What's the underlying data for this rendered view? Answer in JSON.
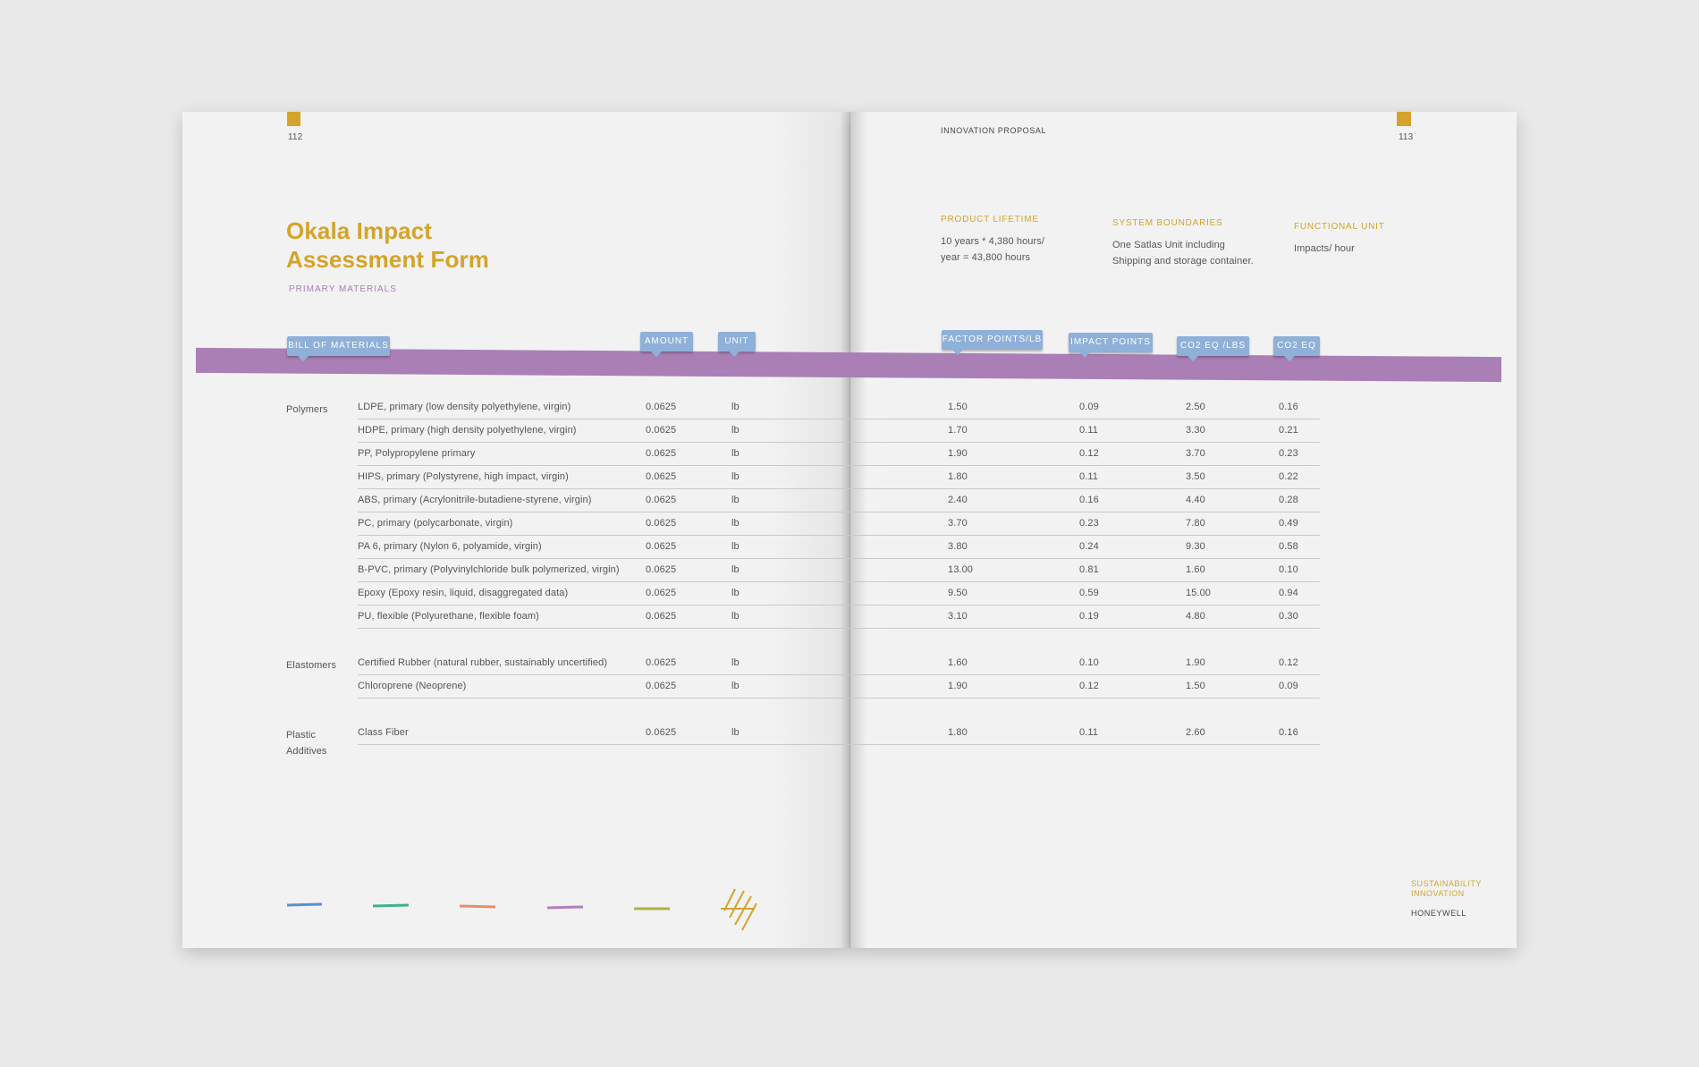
{
  "left_page": {
    "page_number": "112",
    "title": [
      "Okala Impact",
      "Assessment Form"
    ],
    "subtitle": "PRIMARY MATERIALS"
  },
  "right_page": {
    "running_head": "INNOVATION PROPOSAL",
    "page_number": "113",
    "info": [
      {
        "label": "PRODUCT LIFETIME",
        "lines": [
          "10 years * 4,380 hours/",
          "year = 43,800 hours"
        ]
      },
      {
        "label": "SYSTEM BOUNDARIES",
        "lines": [
          "One Satlas Unit including",
          "Shipping and storage container."
        ]
      },
      {
        "label": "FUNCTIONAL UNIT",
        "lines": [
          "Impacts/ hour"
        ]
      }
    ],
    "footer": {
      "program": [
        "SUSTAINABILITY",
        "INNOVATION"
      ],
      "company": "HONEYWELL"
    }
  },
  "table": {
    "headers": [
      "BILL OF MATERIALS",
      "AMOUNT",
      "UNIT",
      "FACTOR POINTS/LB",
      "IMPACT POINTS",
      "CO2 EQ /LBS",
      "CO2 EQ"
    ],
    "groups": [
      {
        "label": "Polymers",
        "rows": [
          [
            "LDPE, primary (low density polyethylene, virgin)",
            "0.0625",
            "lb",
            "1.50",
            "0.09",
            "2.50",
            "0.16"
          ],
          [
            "HDPE, primary (high density polyethylene, virgin)",
            "0.0625",
            "lb",
            "1.70",
            "0.11",
            "3.30",
            "0.21"
          ],
          [
            "PP, Polypropylene primary",
            "0.0625",
            "lb",
            "1.90",
            "0.12",
            "3.70",
            "0.23"
          ],
          [
            "HIPS, primary (Polystyrene, high impact, virgin)",
            "0.0625",
            "lb",
            "1.80",
            "0.11",
            "3.50",
            "0.22"
          ],
          [
            "ABS, primary (Acrylonitrile-butadiene-styrene, virgin)",
            "0.0625",
            "lb",
            "2.40",
            "0.16",
            "4.40",
            "0.28"
          ],
          [
            "PC, primary (polycarbonate, virgin)",
            "0.0625",
            "lb",
            "3.70",
            "0.23",
            "7.80",
            "0.49"
          ],
          [
            "PA 6, primary (Nylon 6, polyamide, virgin)",
            "0.0625",
            "lb",
            "3.80",
            "0.24",
            "9.30",
            "0.58"
          ],
          [
            "B-PVC, primary (Polyvinylchloride bulk polymerized, virgin)",
            "0.0625",
            "lb",
            "13.00",
            "0.81",
            "1.60",
            "0.10"
          ],
          [
            "Epoxy (Epoxy resin, liquid, disaggregated data)",
            "0.0625",
            "lb",
            "9.50",
            "0.59",
            "15.00",
            "0.94"
          ],
          [
            "PU, flexible (Polyurethane, flexible foam)",
            "0.0625",
            "lb",
            "3.10",
            "0.19",
            "4.80",
            "0.30"
          ]
        ]
      },
      {
        "label": "Elastomers",
        "rows": [
          [
            "Certified Rubber (natural rubber, sustainably uncertified)",
            "0.0625",
            "lb",
            "1.60",
            "0.10",
            "1.90",
            "0.12"
          ],
          [
            "Chloroprene (Neoprene)",
            "0.0625",
            "lb",
            "1.90",
            "0.12",
            "1.50",
            "0.09"
          ]
        ]
      },
      {
        "label": "Plastic Additives",
        "rows": [
          [
            "Class Fiber",
            "0.0625",
            "lb",
            "1.80",
            "0.11",
            "2.60",
            "0.16"
          ]
        ]
      }
    ]
  }
}
